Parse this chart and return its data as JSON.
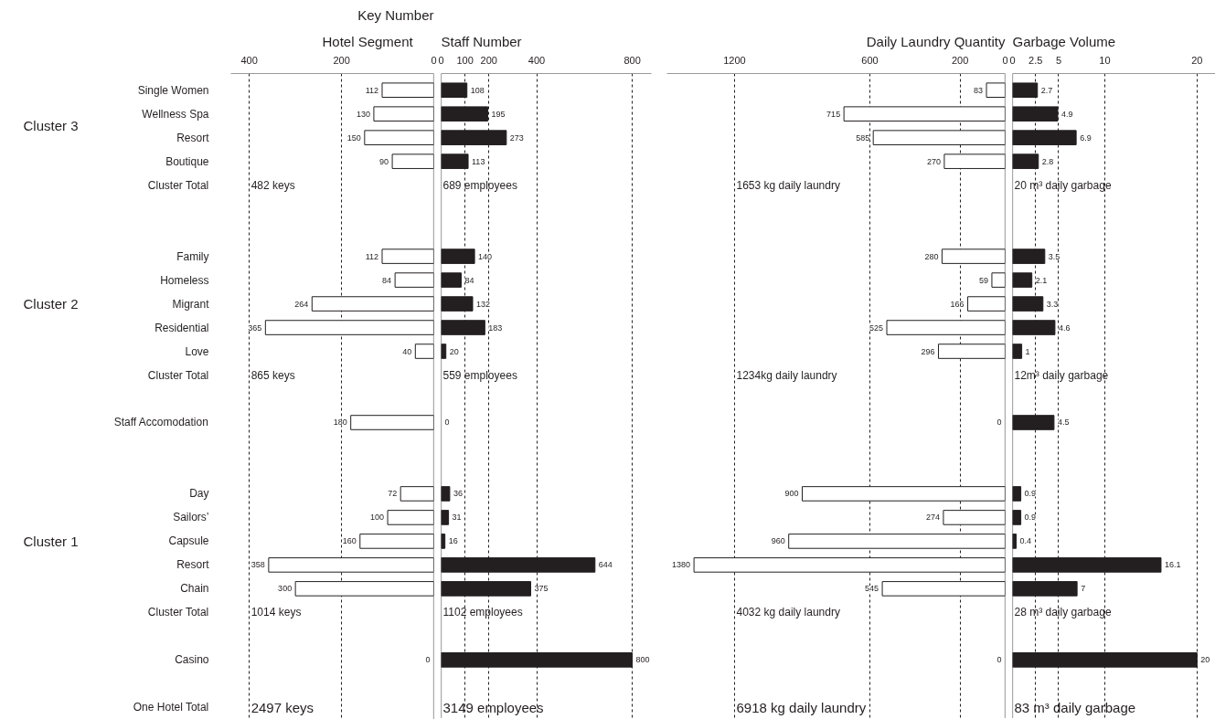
{
  "chart_data": [
    {
      "type": "bar",
      "orientation": "horizontal",
      "title": "Key Number",
      "ylabel": "Hotel Segment",
      "categories": [
        "Single Women",
        "Wellness Spa",
        "Resort",
        "Boutique",
        "Cluster Total",
        null,
        null,
        "Family",
        "Homeless",
        "Migrant",
        "Residential",
        "Love",
        "Cluster Total",
        null,
        "Staff Accomodation",
        null,
        null,
        "Day",
        "Sailors’",
        "Capsule",
        "Resort",
        "Chain",
        "Cluster Total",
        null,
        "Casino",
        null,
        "One Hotel Total"
      ],
      "values": [
        112,
        130,
        150,
        90,
        null,
        null,
        null,
        112,
        84,
        264,
        365,
        40,
        null,
        null,
        180,
        null,
        null,
        72,
        100,
        160,
        358,
        300,
        null,
        null,
        0,
        null,
        null
      ],
      "color": "#ffffff",
      "xlim": [
        440,
        0
      ],
      "xticks": [
        400,
        200,
        0
      ],
      "grid": "x",
      "data_labels": true,
      "tick_labels": true,
      "annotations": [
        "Cluster 3",
        "Cluster 2",
        "Cluster 1",
        "482 keys",
        "865 keys",
        "1014 keys",
        "2497 keys"
      ]
    },
    {
      "type": "bar",
      "orientation": "horizontal",
      "title": "Staff Number",
      "values": [
        108,
        195,
        273,
        113,
        null,
        null,
        null,
        140,
        84,
        132,
        183,
        20,
        null,
        null,
        0,
        null,
        null,
        36,
        31,
        16,
        644,
        375,
        null,
        null,
        800,
        null,
        null
      ],
      "color": "#231f20",
      "xlim": [
        0,
        880
      ],
      "xticks": [
        0,
        100,
        200,
        400,
        800
      ],
      "grid": "x",
      "data_labels": true,
      "tick_labels": "x",
      "annotations": [
        "689 employees",
        "559 employees",
        "1102 employees",
        "3149 employees"
      ]
    },
    {
      "type": "bar",
      "orientation": "horizontal",
      "title": "Daily Laundry Quantity",
      "values": [
        83,
        715,
        585,
        270,
        null,
        null,
        null,
        280,
        59,
        166,
        525,
        296,
        null,
        null,
        0,
        null,
        null,
        900,
        274,
        960,
        1380,
        545,
        null,
        null,
        0,
        null,
        null
      ],
      "color": "#ffffff",
      "xlim": [
        1500,
        0
      ],
      "xticks": [
        1200,
        600,
        200,
        0
      ],
      "grid": "x",
      "data_labels": true,
      "tick_labels": "x",
      "annotations": [
        "1653 kg daily laundry",
        "1234kg daily laundry",
        "4032 kg daily laundry",
        "6918 kg daily laundry"
      ]
    },
    {
      "type": "bar",
      "orientation": "horizontal",
      "title": "Garbage Volume",
      "values": [
        2.7,
        4.9,
        6.9,
        2.8,
        null,
        null,
        null,
        3.5,
        2.1,
        3.3,
        4.6,
        1,
        null,
        null,
        4.5,
        null,
        null,
        0.9,
        0.9,
        0.4,
        16.1,
        7,
        null,
        null,
        20,
        null,
        null
      ],
      "color": "#231f20",
      "xlim": [
        0,
        22
      ],
      "xticks": [
        0,
        2.5,
        5,
        10,
        20
      ],
      "grid": "x",
      "data_labels": true,
      "tick_labels": "x",
      "annotations": [
        "20 m³ daily garbage",
        "12m³ daily garbage",
        "28 m³ daily garbage",
        "83 m³ daily garbage"
      ]
    }
  ]
}
